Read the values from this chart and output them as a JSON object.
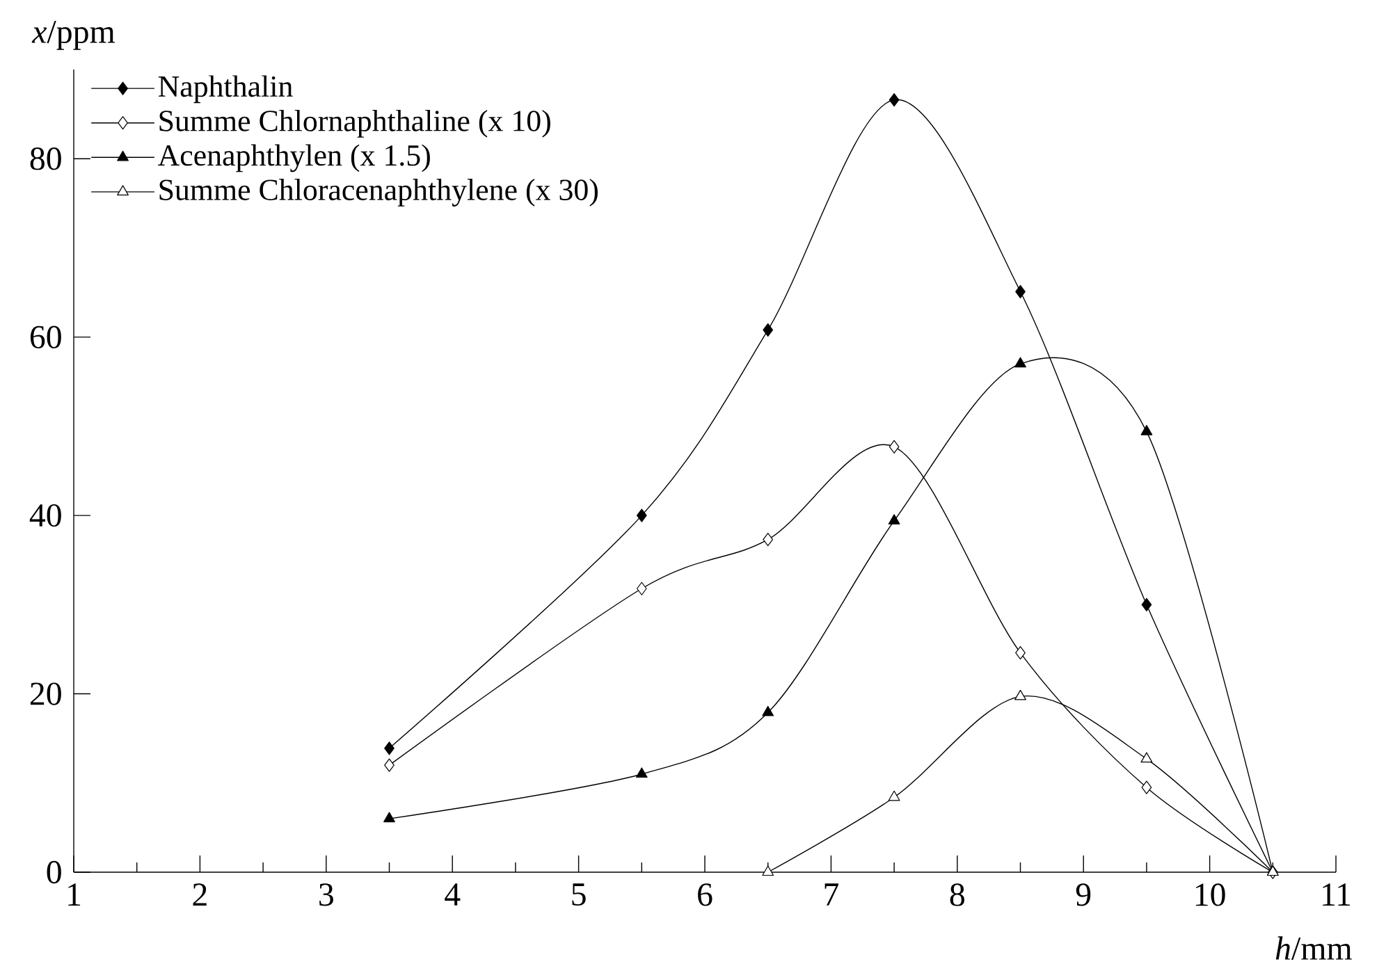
{
  "chart_data": {
    "type": "line",
    "xlabel": "*h*/mm",
    "ylabel": "*x*/ppm",
    "xlim": [
      1,
      11
    ],
    "ylim": [
      0,
      90
    ],
    "xticks": [
      1,
      2,
      3,
      4,
      5,
      6,
      7,
      8,
      9,
      10,
      11
    ],
    "yticks": [
      0,
      20,
      40,
      60,
      80
    ],
    "x": [
      3.5,
      5.5,
      6.5,
      7.5,
      8.5,
      9.5,
      10.5
    ],
    "line_style": "solid",
    "legend": "top left",
    "grid": false,
    "series": [
      {
        "name": "Naphthalin",
        "color": "#000000",
        "marker": "diamond",
        "values": [
          13.9,
          40.0,
          60.8,
          86.6,
          65.1,
          30.0,
          0
        ]
      },
      {
        "name": "Summe Chlornaphthaline (x 10)",
        "color": "#000000",
        "marker": "diamond",
        "values": [
          12.0,
          31.8,
          37.3,
          47.7,
          24.6,
          9.5,
          0
        ]
      },
      {
        "name": "Acenaphthylen (x 1.5)",
        "color": "#000000",
        "marker": "triangle",
        "values": [
          6.0,
          11.0,
          17.9,
          39.4,
          57.0,
          49.4,
          0
        ]
      },
      {
        "name": "Summe Chloracenaphthylene (x 30)",
        "color": "#000000",
        "marker": "triangle",
        "values": [
          null,
          null,
          0,
          8.4,
          19.7,
          12.7,
          0
        ]
      }
    ]
  }
}
